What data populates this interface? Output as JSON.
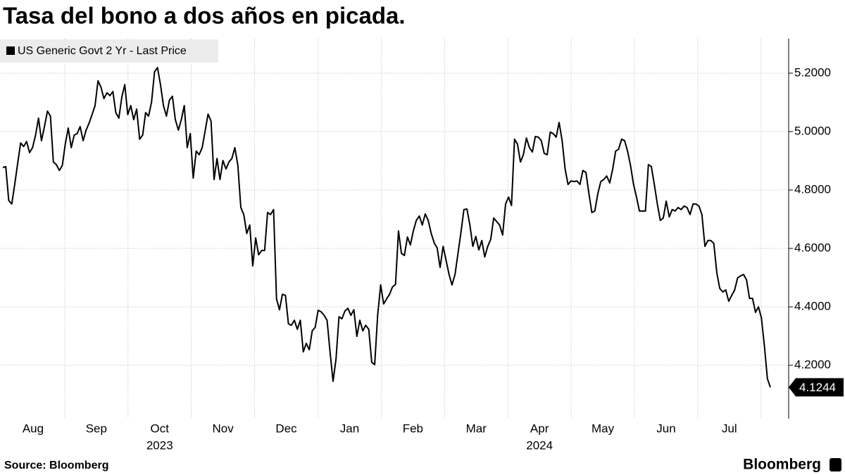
{
  "chart_data": {
    "type": "line",
    "title": "Tasa del bono a dos años en picada.",
    "source": "Source:  Bloomberg",
    "brand": "Bloomberg",
    "months": [
      "Aug",
      "Sep",
      "Oct",
      "Nov",
      "Dec",
      "Jan",
      "Feb",
      "Mar",
      "Apr",
      "May",
      "Jun",
      "Jul"
    ],
    "years": [
      "2023",
      "2024"
    ],
    "ylim": [
      4.017,
      5.318
    ],
    "yticks": [
      {
        "value": 4.2,
        "label": "4.2000"
      },
      {
        "value": 4.4,
        "label": "4.4000"
      },
      {
        "value": 4.6,
        "label": "4.6000"
      },
      {
        "value": 4.8,
        "label": "4.8000"
      },
      {
        "value": 5.0,
        "label": "5.0000"
      },
      {
        "value": 5.2,
        "label": "5.2000"
      }
    ],
    "grid": true,
    "legend": "top-left",
    "series": [
      {
        "name": "US Generic Govt 2 Yr - Last Price",
        "color": "#000000",
        "values": [
          4.877,
          4.88,
          4.764,
          4.752,
          4.819,
          4.891,
          4.961,
          4.949,
          4.966,
          4.928,
          4.945,
          4.988,
          5.046,
          4.969,
          5.017,
          5.07,
          5.053,
          4.896,
          4.887,
          4.867,
          4.884,
          4.957,
          5.012,
          4.945,
          4.988,
          4.993,
          5.017,
          4.969,
          5.005,
          5.029,
          5.058,
          5.089,
          5.174,
          5.152,
          5.113,
          5.133,
          5.123,
          5.137,
          5.065,
          5.046,
          5.118,
          5.161,
          5.058,
          5.089,
          5.041,
          5.077,
          4.974,
          4.988,
          5.065,
          5.053,
          5.101,
          5.205,
          5.219,
          5.161,
          5.089,
          5.053,
          5.108,
          5.121,
          5.041,
          5.005,
          5.041,
          5.089,
          4.945,
          4.993,
          4.841,
          4.933,
          4.921,
          4.945,
          5.002,
          5.06,
          5.036,
          4.836,
          4.908,
          4.836,
          4.901,
          4.872,
          4.896,
          4.908,
          4.945,
          4.884,
          4.74,
          4.716,
          4.651,
          4.68,
          4.54,
          4.636,
          4.578,
          4.593,
          4.593,
          4.723,
          4.716,
          4.733,
          4.427,
          4.39,
          4.443,
          4.439,
          4.342,
          4.337,
          4.354,
          4.323,
          4.354,
          4.246,
          4.275,
          4.253,
          4.318,
          4.33,
          4.388,
          4.383,
          4.371,
          4.354,
          4.246,
          4.145,
          4.222,
          4.366,
          4.359,
          4.386,
          4.395,
          4.371,
          4.39,
          4.299,
          4.354,
          4.318,
          4.337,
          4.323,
          4.21,
          4.202,
          4.371,
          4.475,
          4.41,
          4.427,
          4.443,
          4.468,
          4.477,
          4.66,
          4.583,
          4.576,
          4.639,
          4.612,
          4.66,
          4.696,
          4.711,
          4.68,
          4.718,
          4.696,
          4.651,
          4.619,
          4.602,
          4.535,
          4.607,
          4.559,
          4.511,
          4.475,
          4.511,
          4.583,
          4.655,
          4.733,
          4.735,
          4.68,
          4.607,
          4.641,
          4.595,
          4.627,
          4.571,
          4.607,
          4.631,
          4.704,
          4.692,
          4.68,
          4.646,
          4.752,
          4.776,
          4.747,
          4.974,
          4.957,
          4.896,
          4.921,
          4.978,
          4.945,
          4.93,
          4.983,
          4.981,
          4.969,
          4.925,
          4.921,
          4.998,
          4.993,
          4.981,
          5.031,
          4.969,
          4.872,
          4.819,
          4.831,
          4.829,
          4.831,
          4.819,
          4.867,
          4.86,
          4.788,
          4.723,
          4.728,
          4.788,
          4.829,
          4.836,
          4.848,
          4.824,
          4.872,
          4.933,
          4.94,
          4.974,
          4.969,
          4.933,
          4.884,
          4.819,
          4.776,
          4.728,
          4.728,
          4.728,
          4.887,
          4.88,
          4.819,
          4.752,
          4.696,
          4.704,
          4.762,
          4.708,
          4.733,
          4.728,
          4.74,
          4.733,
          4.745,
          4.74,
          4.716,
          4.752,
          4.752,
          4.745,
          4.716,
          4.607,
          4.627,
          4.627,
          4.617,
          4.516,
          4.463,
          4.451,
          4.458,
          4.419,
          4.439,
          4.458,
          4.499,
          4.506,
          4.511,
          4.492,
          4.429,
          4.429,
          4.381,
          4.4,
          4.362,
          4.265,
          4.154,
          4.1244
        ]
      }
    ]
  }
}
